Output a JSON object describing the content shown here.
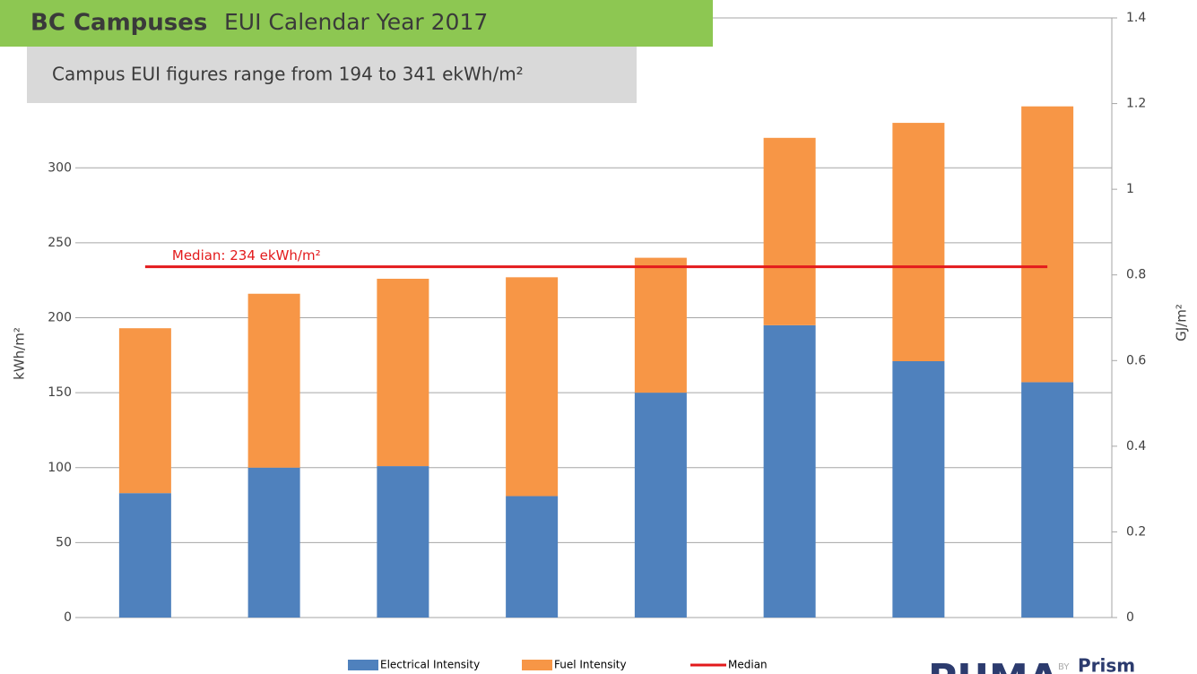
{
  "chart_data": {
    "type": "bar",
    "title_bold": "BC Campuses",
    "title": "EUI Calendar Year 2017",
    "subtitle": "Campus EUI figures range from 194 to 341 ekWh/m²",
    "y_label": "kWh/m²",
    "y2_label": "GJ/m²",
    "annotation": "Median: 234 ekWh/m²",
    "categories": [
      null,
      null,
      null,
      null,
      null,
      null,
      null,
      null
    ],
    "series": [
      {
        "name": "Electrical Intensity",
        "color": "#4f81bd",
        "values": [
          83,
          100,
          101,
          81,
          150,
          195,
          171,
          157
        ]
      },
      {
        "name": "Fuel Intensity",
        "color": "#f79646",
        "values": [
          110,
          116,
          125,
          146,
          90,
          125,
          159,
          184
        ]
      },
      {
        "name": "Median",
        "color": "#e31a1c",
        "type": "line",
        "values": [
          234,
          234,
          234,
          234,
          234,
          234,
          234,
          234
        ]
      }
    ],
    "stacked": true,
    "ylim": [
      0,
      400
    ],
    "yticks": [
      0,
      50,
      100,
      150,
      200,
      250,
      300
    ],
    "y2lim": [
      0,
      1.4
    ],
    "y2ticks": [
      0,
      0.2,
      0.4,
      0.6,
      0.8,
      1,
      1.2,
      1.4
    ],
    "grid": true,
    "legend": "bottom",
    "logo": "PUMA",
    "logo_by": "BY",
    "logo_brand": "Prism"
  }
}
